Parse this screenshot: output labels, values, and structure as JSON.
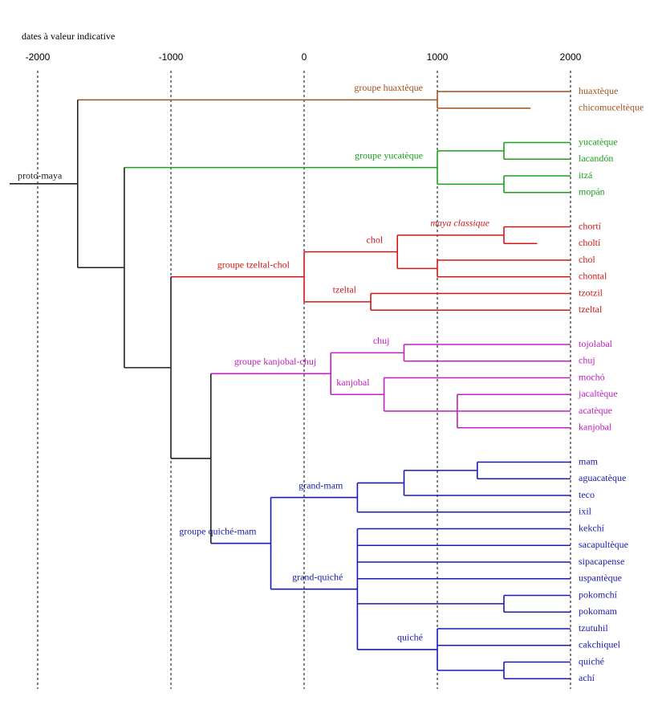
{
  "axis": {
    "title": "dates à valeur indicative",
    "xlim": [
      -2000,
      2000
    ],
    "xticks": [
      -2000,
      -1000,
      0,
      1000,
      2000
    ]
  },
  "tree": {
    "label": "proto-maya",
    "date": -1700,
    "color": "#222222",
    "children": [
      {
        "label": "groupe huaxtèque",
        "date": 1000,
        "color": "#a0521e",
        "children": [
          {
            "name": "huaxtèque",
            "date": 2000
          },
          {
            "name": "chicomuceltèque",
            "date": 1700
          }
        ]
      },
      {
        "date": -1350,
        "children": [
          {
            "label": "groupe yucatèque",
            "date": 1000,
            "color": "#1aa01a",
            "children": [
              {
                "date": 1500,
                "children": [
                  {
                    "name": "yucatèque",
                    "date": 2000
                  },
                  {
                    "name": "lacandón",
                    "date": 2000
                  }
                ]
              },
              {
                "date": 1500,
                "children": [
                  {
                    "name": "itzá",
                    "date": 2000
                  },
                  {
                    "name": "mopán",
                    "date": 2000
                  }
                ]
              }
            ]
          },
          {
            "date": -1000,
            "children": [
              {
                "label": "groupe tzeltal-chol",
                "date": 0,
                "color": "#d01818",
                "children": [
                  {
                    "label": "chol",
                    "date": 700,
                    "children": [
                      {
                        "label": "maya classique",
                        "italic": true,
                        "date": 1500,
                        "children": [
                          {
                            "name": "chortí",
                            "date": 2000
                          },
                          {
                            "name": "choltí",
                            "date": 1750
                          }
                        ]
                      },
                      {
                        "date": 1000,
                        "children": [
                          {
                            "name": "chol",
                            "date": 2000
                          },
                          {
                            "name": "chontal",
                            "date": 2000
                          }
                        ]
                      }
                    ]
                  },
                  {
                    "label": "tzeltal",
                    "date": 500,
                    "children": [
                      {
                        "name": "tzotzil",
                        "date": 2000
                      },
                      {
                        "name": "tzeltal",
                        "date": 2000
                      }
                    ]
                  }
                ]
              },
              {
                "date": -700,
                "children": [
                  {
                    "label": "groupe kanjobal-chuj",
                    "date": 200,
                    "color": "#c020c0",
                    "children": [
                      {
                        "label": "chuj",
                        "date": 750,
                        "children": [
                          {
                            "name": "tojolabal",
                            "date": 2000
                          },
                          {
                            "name": "chuj",
                            "date": 2000
                          }
                        ]
                      },
                      {
                        "label": "kanjobal",
                        "date": 600,
                        "children": [
                          {
                            "name": "mochó",
                            "date": 2000
                          },
                          {
                            "date": 1150,
                            "children": [
                              {
                                "name": "jacaltèque",
                                "date": 2000
                              },
                              {
                                "name": "acatèque",
                                "date": 2000
                              },
                              {
                                "name": "kanjobal",
                                "date": 2000
                              }
                            ]
                          }
                        ]
                      }
                    ]
                  },
                  {
                    "label": "groupe quiché-mam",
                    "date": -250,
                    "color": "#1a1ab4",
                    "children": [
                      {
                        "label": "grand-mam",
                        "date": 400,
                        "children": [
                          {
                            "date": 750,
                            "children": [
                              {
                                "date": 1300,
                                "children": [
                                  {
                                    "name": "mam",
                                    "date": 2000
                                  },
                                  {
                                    "name": "aguacatèque",
                                    "date": 2000
                                  }
                                ]
                              },
                              {
                                "name": "teco",
                                "date": 2000
                              }
                            ]
                          },
                          {
                            "name": "ixil",
                            "date": 2000
                          }
                        ]
                      },
                      {
                        "label": "grand-quiché",
                        "date": 400,
                        "children": [
                          {
                            "name": "kekchí",
                            "date": 2000
                          },
                          {
                            "name": "sacapultèque",
                            "date": 2000
                          },
                          {
                            "name": "sipacapense",
                            "date": 2000
                          },
                          {
                            "name": "uspantèque",
                            "date": 2000
                          },
                          {
                            "date": 1500,
                            "children": [
                              {
                                "name": "pokomchí",
                                "date": 2000
                              },
                              {
                                "name": "pokomam",
                                "date": 2000
                              }
                            ]
                          },
                          {
                            "label": "quiché",
                            "date": 1000,
                            "children": [
                              {
                                "name": "tzutuhil",
                                "date": 2000
                              },
                              {
                                "name": "cakchiquel",
                                "date": 2000
                              },
                              {
                                "date": 1500,
                                "children": [
                                  {
                                    "name": "quiché",
                                    "date": 2000
                                  },
                                  {
                                    "name": "achí",
                                    "date": 2000
                                  }
                                ]
                              }
                            ]
                          }
                        ]
                      }
                    ]
                  }
                ]
              }
            ]
          }
        ]
      }
    ]
  }
}
